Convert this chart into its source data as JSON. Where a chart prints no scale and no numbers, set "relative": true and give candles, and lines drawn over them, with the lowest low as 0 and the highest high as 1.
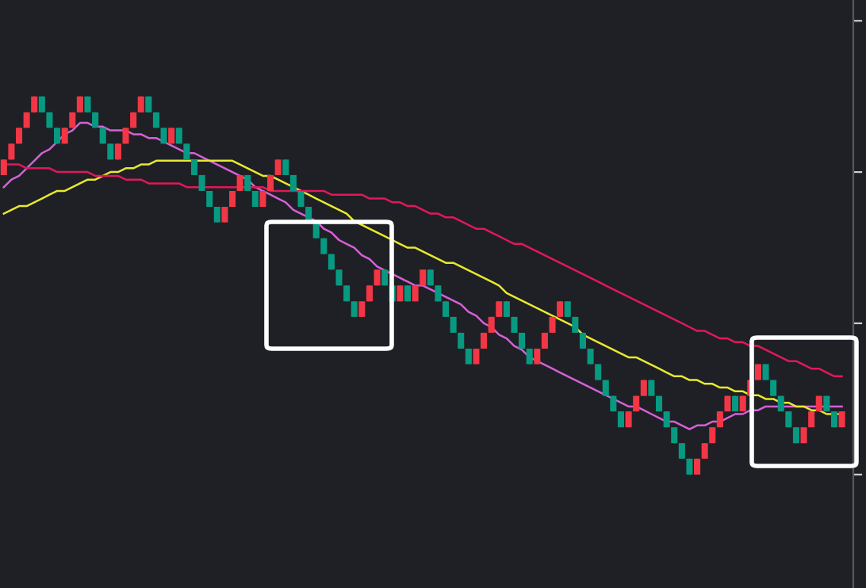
{
  "chart_data": {
    "type": "candlestick",
    "relative": true,
    "colors": [
      "#f23645",
      "#f23645",
      "#f23645",
      "#f23645",
      "#f23645",
      "#089981",
      "#089981",
      "#089981",
      "#f23645",
      "#f23645",
      "#f23645",
      "#089981",
      "#089981",
      "#089981",
      "#089981",
      "#f23645",
      "#f23645",
      "#f23645",
      "#f23645",
      "#089981",
      "#089981",
      "#089981",
      "#f23645",
      "#089981",
      "#089981",
      "#089981",
      "#089981",
      "#089981",
      "#089981",
      "#f23645",
      "#f23645",
      "#f23645",
      "#089981",
      "#089981",
      "#f23645",
      "#f23645",
      "#f23645",
      "#089981",
      "#089981",
      "#089981",
      "#089981",
      "#089981",
      "#089981",
      "#089981",
      "#089981",
      "#089981",
      "#089981",
      "#f23645",
      "#f23645",
      "#f23645",
      "#089981",
      "#089981",
      "#f23645",
      "#089981",
      "#f23645",
      "#f23645",
      "#089981",
      "#089981",
      "#089981",
      "#089981",
      "#089981",
      "#089981",
      "#f23645",
      "#f23645",
      "#f23645",
      "#f23645",
      "#089981",
      "#089981",
      "#089981",
      "#089981",
      "#f23645",
      "#f23645",
      "#f23645",
      "#f23645",
      "#089981",
      "#089981",
      "#089981",
      "#089981",
      "#089981",
      "#089981",
      "#089981",
      "#089981",
      "#f23645",
      "#f23645",
      "#f23645",
      "#089981",
      "#089981",
      "#089981",
      "#089981",
      "#089981",
      "#089981",
      "#f23645",
      "#f23645",
      "#f23645",
      "#f23645",
      "#f23645",
      "#089981",
      "#f23645",
      "#f23645",
      "#f23645",
      "#089981",
      "#089981",
      "#089981",
      "#089981",
      "#089981",
      "#f23645",
      "#f23645",
      "#f23645",
      "#089981",
      "#089981",
      "#f23645"
    ],
    "categories": [
      null,
      null,
      null,
      null,
      null,
      null,
      null,
      null,
      null,
      null,
      null,
      null,
      null,
      null,
      null,
      null,
      null,
      null,
      null,
      null,
      null,
      null,
      null,
      null,
      null,
      null,
      null,
      null,
      null,
      null,
      null,
      null,
      null,
      null,
      null,
      null,
      null,
      null,
      null,
      null,
      null,
      null,
      null,
      null,
      null,
      null,
      null,
      null,
      null,
      null,
      null,
      null,
      null,
      null,
      null,
      null,
      null,
      null,
      null,
      null,
      null,
      null,
      null,
      null,
      null,
      null,
      null,
      null,
      null,
      null,
      null,
      null,
      null,
      null,
      null,
      null,
      null,
      null,
      null,
      null,
      null,
      null,
      null,
      null,
      null,
      null,
      null,
      null,
      null,
      null,
      null,
      null,
      null,
      null,
      null,
      null,
      null,
      null,
      null,
      null,
      null,
      null,
      null,
      null,
      null,
      null,
      null,
      null,
      null,
      null,
      null
    ],
    "ohlc": [
      [
        0.792,
        0.833,
        0.792,
        0.833
      ],
      [
        0.833,
        0.875,
        0.833,
        0.875
      ],
      [
        0.875,
        0.917,
        0.875,
        0.917
      ],
      [
        0.917,
        0.958,
        0.917,
        0.958
      ],
      [
        0.958,
        1,
        0.958,
        1
      ],
      [
        1,
        1,
        0.958,
        0.958
      ],
      [
        0.958,
        0.958,
        0.917,
        0.917
      ],
      [
        0.917,
        0.917,
        0.875,
        0.875
      ],
      [
        0.875,
        0.917,
        0.875,
        0.917
      ],
      [
        0.917,
        0.958,
        0.917,
        0.958
      ],
      [
        0.958,
        1,
        0.958,
        1
      ],
      [
        1,
        1,
        0.958,
        0.958
      ],
      [
        0.958,
        0.958,
        0.917,
        0.917
      ],
      [
        0.917,
        0.917,
        0.875,
        0.875
      ],
      [
        0.875,
        0.875,
        0.833,
        0.833
      ],
      [
        0.833,
        0.875,
        0.833,
        0.875
      ],
      [
        0.875,
        0.917,
        0.875,
        0.917
      ],
      [
        0.917,
        0.958,
        0.917,
        0.958
      ],
      [
        0.958,
        1,
        0.958,
        1
      ],
      [
        1,
        1,
        0.958,
        0.958
      ],
      [
        0.958,
        0.958,
        0.917,
        0.917
      ],
      [
        0.917,
        0.917,
        0.875,
        0.875
      ],
      [
        0.875,
        0.917,
        0.875,
        0.917
      ],
      [
        0.917,
        0.917,
        0.875,
        0.875
      ],
      [
        0.875,
        0.875,
        0.833,
        0.833
      ],
      [
        0.833,
        0.833,
        0.792,
        0.792
      ],
      [
        0.792,
        0.792,
        0.75,
        0.75
      ],
      [
        0.75,
        0.75,
        0.708,
        0.708
      ],
      [
        0.708,
        0.708,
        0.667,
        0.667
      ],
      [
        0.667,
        0.708,
        0.667,
        0.708
      ],
      [
        0.708,
        0.75,
        0.708,
        0.75
      ],
      [
        0.75,
        0.792,
        0.75,
        0.792
      ],
      [
        0.792,
        0.792,
        0.75,
        0.75
      ],
      [
        0.75,
        0.75,
        0.708,
        0.708
      ],
      [
        0.708,
        0.75,
        0.708,
        0.75
      ],
      [
        0.75,
        0.792,
        0.75,
        0.792
      ],
      [
        0.792,
        0.833,
        0.792,
        0.833
      ],
      [
        0.833,
        0.833,
        0.792,
        0.792
      ],
      [
        0.792,
        0.792,
        0.75,
        0.75
      ],
      [
        0.75,
        0.75,
        0.708,
        0.708
      ],
      [
        0.708,
        0.708,
        0.667,
        0.667
      ],
      [
        0.667,
        0.667,
        0.625,
        0.625
      ],
      [
        0.625,
        0.625,
        0.583,
        0.583
      ],
      [
        0.583,
        0.583,
        0.542,
        0.542
      ],
      [
        0.542,
        0.542,
        0.5,
        0.5
      ],
      [
        0.5,
        0.5,
        0.458,
        0.458
      ],
      [
        0.458,
        0.458,
        0.417,
        0.417
      ],
      [
        0.417,
        0.458,
        0.417,
        0.458
      ],
      [
        0.458,
        0.5,
        0.458,
        0.5
      ],
      [
        0.5,
        0.542,
        0.5,
        0.542
      ],
      [
        0.542,
        0.542,
        0.5,
        0.5
      ],
      [
        0.5,
        0.5,
        0.458,
        0.458
      ],
      [
        0.458,
        0.5,
        0.458,
        0.5
      ],
      [
        0.5,
        0.5,
        0.458,
        0.458
      ],
      [
        0.458,
        0.5,
        0.458,
        0.5
      ],
      [
        0.5,
        0.542,
        0.5,
        0.542
      ],
      [
        0.542,
        0.542,
        0.5,
        0.5
      ],
      [
        0.5,
        0.5,
        0.458,
        0.458
      ],
      [
        0.458,
        0.458,
        0.417,
        0.417
      ],
      [
        0.417,
        0.417,
        0.375,
        0.375
      ],
      [
        0.375,
        0.375,
        0.333,
        0.333
      ],
      [
        0.333,
        0.333,
        0.292,
        0.292
      ],
      [
        0.292,
        0.333,
        0.292,
        0.333
      ],
      [
        0.333,
        0.375,
        0.333,
        0.375
      ],
      [
        0.375,
        0.417,
        0.375,
        0.417
      ],
      [
        0.417,
        0.458,
        0.417,
        0.458
      ],
      [
        0.458,
        0.458,
        0.417,
        0.417
      ],
      [
        0.417,
        0.417,
        0.375,
        0.375
      ],
      [
        0.375,
        0.375,
        0.333,
        0.333
      ],
      [
        0.333,
        0.333,
        0.292,
        0.292
      ],
      [
        0.292,
        0.333,
        0.292,
        0.333
      ],
      [
        0.333,
        0.375,
        0.333,
        0.375
      ],
      [
        0.375,
        0.417,
        0.375,
        0.417
      ],
      [
        0.417,
        0.458,
        0.417,
        0.458
      ],
      [
        0.458,
        0.458,
        0.417,
        0.417
      ],
      [
        0.417,
        0.417,
        0.375,
        0.375
      ],
      [
        0.375,
        0.375,
        0.333,
        0.333
      ],
      [
        0.333,
        0.333,
        0.292,
        0.292
      ],
      [
        0.292,
        0.292,
        0.25,
        0.25
      ],
      [
        0.25,
        0.25,
        0.208,
        0.208
      ],
      [
        0.208,
        0.208,
        0.167,
        0.167
      ],
      [
        0.167,
        0.167,
        0.125,
        0.125
      ],
      [
        0.125,
        0.167,
        0.125,
        0.167
      ],
      [
        0.167,
        0.208,
        0.167,
        0.208
      ],
      [
        0.208,
        0.25,
        0.208,
        0.25
      ],
      [
        0.25,
        0.25,
        0.208,
        0.208
      ],
      [
        0.208,
        0.208,
        0.167,
        0.167
      ],
      [
        0.167,
        0.167,
        0.125,
        0.125
      ],
      [
        0.125,
        0.125,
        0.083,
        0.083
      ],
      [
        0.083,
        0.083,
        0.042,
        0.042
      ],
      [
        0.042,
        0.042,
        0,
        0
      ],
      [
        0,
        0.042,
        0,
        0.042
      ],
      [
        0.042,
        0.083,
        0.042,
        0.083
      ],
      [
        0.083,
        0.125,
        0.083,
        0.125
      ],
      [
        0.125,
        0.167,
        0.125,
        0.167
      ],
      [
        0.167,
        0.208,
        0.167,
        0.208
      ],
      [
        0.208,
        0.208,
        0.167,
        0.167
      ],
      [
        0.167,
        0.208,
        0.167,
        0.208
      ],
      [
        0.208,
        0.25,
        0.208,
        0.25
      ],
      [
        0.25,
        0.292,
        0.25,
        0.292
      ],
      [
        0.292,
        0.292,
        0.25,
        0.25
      ],
      [
        0.25,
        0.25,
        0.208,
        0.208
      ],
      [
        0.208,
        0.208,
        0.167,
        0.167
      ],
      [
        0.167,
        0.167,
        0.125,
        0.125
      ],
      [
        0.125,
        0.125,
        0.083,
        0.083
      ],
      [
        0.083,
        0.125,
        0.083,
        0.125
      ],
      [
        0.125,
        0.167,
        0.125,
        0.167
      ],
      [
        0.167,
        0.208,
        0.167,
        0.208
      ],
      [
        0.208,
        0.208,
        0.167,
        0.167
      ],
      [
        0.167,
        0.167,
        0.125,
        0.125
      ],
      [
        0.125,
        0.167,
        0.125,
        0.167
      ]
    ],
    "series": [
      {
        "type": "line",
        "color": "#d660d6",
        "values": [
          0.76,
          0.78,
          0.79,
          0.81,
          0.83,
          0.85,
          0.86,
          0.88,
          0.9,
          0.91,
          0.93,
          0.93,
          0.92,
          0.92,
          0.91,
          0.91,
          0.91,
          0.9,
          0.9,
          0.89,
          0.89,
          0.88,
          0.87,
          0.86,
          0.85,
          0.85,
          0.84,
          0.83,
          0.82,
          0.81,
          0.8,
          0.79,
          0.78,
          0.76,
          0.75,
          0.74,
          0.73,
          0.72,
          0.7,
          0.69,
          0.68,
          0.67,
          0.65,
          0.64,
          0.62,
          0.61,
          0.6,
          0.58,
          0.57,
          0.55,
          0.54,
          0.53,
          0.52,
          0.51,
          0.5,
          0.5,
          0.49,
          0.48,
          0.47,
          0.46,
          0.45,
          0.43,
          0.42,
          0.4,
          0.39,
          0.37,
          0.36,
          0.34,
          0.33,
          0.31,
          0.3,
          0.29,
          0.28,
          0.27,
          0.26,
          0.25,
          0.24,
          0.23,
          0.22,
          0.21,
          0.2,
          0.19,
          0.18,
          0.18,
          0.17,
          0.16,
          0.15,
          0.14,
          0.14,
          0.13,
          0.12,
          0.13,
          0.13,
          0.14,
          0.14,
          0.15,
          0.16,
          0.16,
          0.17,
          0.17,
          0.18,
          0.18,
          0.18,
          0.18,
          0.18,
          0.18,
          0.18,
          0.18,
          0.18,
          0.18,
          0.18
        ]
      },
      {
        "type": "line",
        "color": "#e8e830",
        "values": [
          0.69,
          0.7,
          0.71,
          0.71,
          0.72,
          0.73,
          0.74,
          0.75,
          0.75,
          0.76,
          0.77,
          0.78,
          0.78,
          0.79,
          0.8,
          0.8,
          0.81,
          0.81,
          0.82,
          0.82,
          0.83,
          0.83,
          0.83,
          0.83,
          0.83,
          0.83,
          0.83,
          0.83,
          0.83,
          0.83,
          0.83,
          0.82,
          0.81,
          0.8,
          0.79,
          0.79,
          0.78,
          0.77,
          0.76,
          0.75,
          0.74,
          0.73,
          0.72,
          0.71,
          0.7,
          0.69,
          0.67,
          0.66,
          0.65,
          0.64,
          0.63,
          0.62,
          0.61,
          0.6,
          0.6,
          0.59,
          0.58,
          0.57,
          0.56,
          0.56,
          0.55,
          0.54,
          0.53,
          0.52,
          0.51,
          0.5,
          0.48,
          0.47,
          0.46,
          0.45,
          0.44,
          0.43,
          0.42,
          0.41,
          0.4,
          0.39,
          0.37,
          0.36,
          0.35,
          0.34,
          0.33,
          0.32,
          0.31,
          0.31,
          0.3,
          0.29,
          0.28,
          0.27,
          0.26,
          0.26,
          0.25,
          0.25,
          0.24,
          0.24,
          0.23,
          0.23,
          0.22,
          0.22,
          0.21,
          0.21,
          0.2,
          0.2,
          0.19,
          0.19,
          0.18,
          0.18,
          0.17,
          0.17,
          0.16,
          0.16,
          0.16
        ]
      },
      {
        "type": "line",
        "color": "#e0185a",
        "values": [
          0.82,
          0.82,
          0.82,
          0.81,
          0.81,
          0.81,
          0.81,
          0.8,
          0.8,
          0.8,
          0.8,
          0.8,
          0.79,
          0.79,
          0.79,
          0.79,
          0.78,
          0.78,
          0.78,
          0.77,
          0.77,
          0.77,
          0.77,
          0.77,
          0.76,
          0.76,
          0.76,
          0.76,
          0.76,
          0.76,
          0.76,
          0.76,
          0.76,
          0.76,
          0.76,
          0.75,
          0.75,
          0.75,
          0.75,
          0.75,
          0.75,
          0.75,
          0.75,
          0.74,
          0.74,
          0.74,
          0.74,
          0.74,
          0.73,
          0.73,
          0.73,
          0.72,
          0.72,
          0.71,
          0.71,
          0.7,
          0.69,
          0.69,
          0.68,
          0.68,
          0.67,
          0.66,
          0.65,
          0.65,
          0.64,
          0.63,
          0.62,
          0.61,
          0.61,
          0.6,
          0.59,
          0.58,
          0.57,
          0.56,
          0.55,
          0.54,
          0.53,
          0.52,
          0.51,
          0.5,
          0.49,
          0.48,
          0.47,
          0.46,
          0.45,
          0.44,
          0.43,
          0.42,
          0.41,
          0.4,
          0.39,
          0.38,
          0.38,
          0.37,
          0.36,
          0.36,
          0.35,
          0.35,
          0.34,
          0.34,
          0.33,
          0.32,
          0.31,
          0.3,
          0.3,
          0.29,
          0.28,
          0.28,
          0.27,
          0.26,
          0.26
        ]
      }
    ]
  }
}
